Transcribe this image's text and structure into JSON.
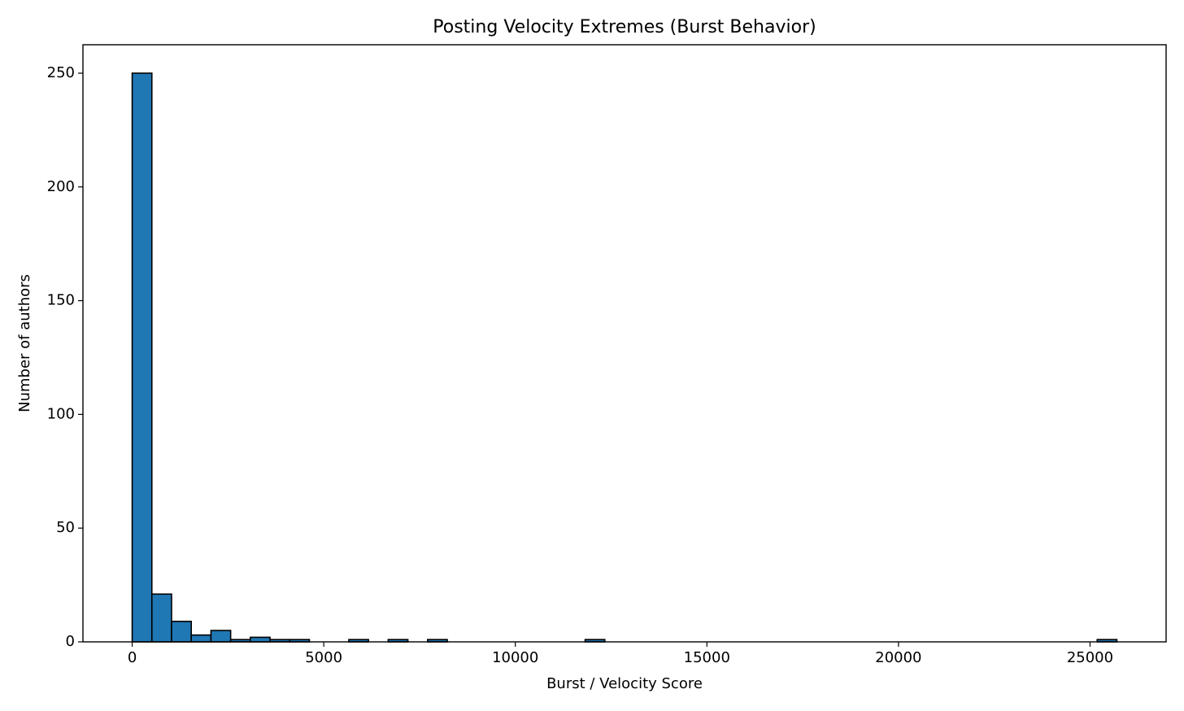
{
  "chart_data": {
    "type": "histogram",
    "title": "Posting Velocity Extremes (Burst Behavior)",
    "x_label": "Burst / Velocity Score",
    "y_label": "Number of authors",
    "bins": [
      0,
      514,
      1028,
      1542,
      2056,
      2570,
      3084,
      3598,
      4112,
      4626,
      5140,
      5654,
      6168,
      6682,
      7196,
      7710,
      8224,
      8738,
      9252,
      9766,
      10280,
      10794,
      11308,
      11822,
      12336,
      12850,
      13364,
      13878,
      14392,
      14906,
      15420,
      15934,
      16448,
      16962,
      17476,
      17990,
      18504,
      19018,
      19532,
      20046,
      20560,
      21074,
      21588,
      22102,
      22616,
      23130,
      23644,
      24158,
      24672,
      25186,
      25700
    ],
    "counts": [
      250,
      21,
      9,
      3,
      5,
      1,
      2,
      1,
      1,
      0,
      0,
      1,
      0,
      1,
      0,
      1,
      0,
      0,
      0,
      0,
      0,
      0,
      0,
      1,
      0,
      0,
      0,
      0,
      0,
      0,
      0,
      0,
      0,
      0,
      0,
      0,
      0,
      0,
      0,
      0,
      0,
      0,
      0,
      0,
      0,
      0,
      0,
      0,
      0,
      1
    ],
    "color": "#1f77b4",
    "edgecolor": "#000000",
    "xlim": [
      -1285,
      26985
    ],
    "ylim": [
      0,
      262.5
    ],
    "xticks": [
      0,
      5000,
      10000,
      15000,
      20000,
      25000
    ],
    "yticks": [
      0,
      50,
      100,
      150,
      200,
      250
    ]
  }
}
